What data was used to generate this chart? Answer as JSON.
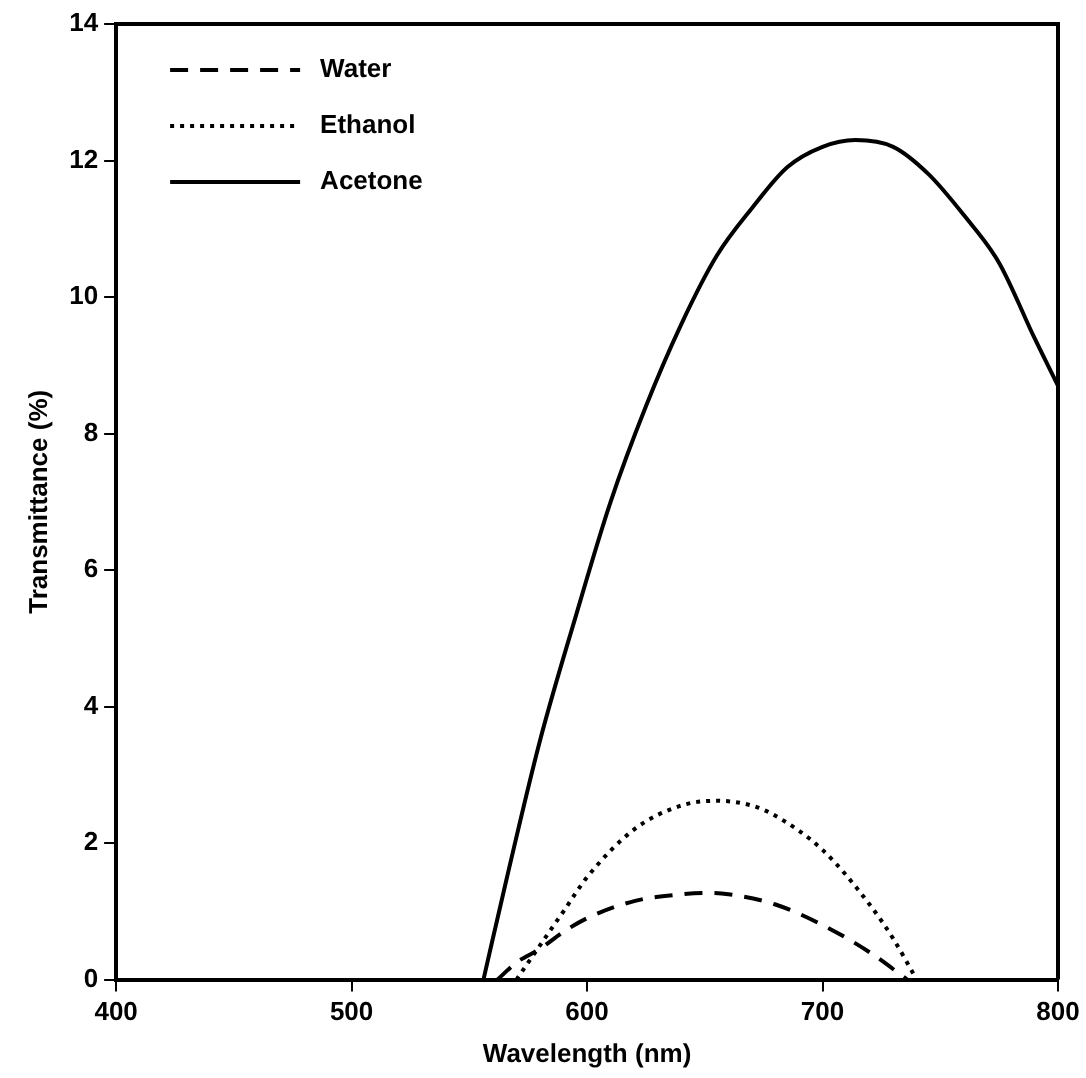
{
  "chart_data": {
    "type": "line",
    "xlabel": "Wavelength (nm)",
    "ylabel": "Transmittance (%)",
    "xlim": [
      400,
      800
    ],
    "xticks": [
      400,
      500,
      600,
      700,
      800
    ],
    "ylim": [
      0,
      14
    ],
    "yticks": [
      0,
      2,
      4,
      6,
      8,
      10,
      12,
      14
    ],
    "grid": false,
    "legend": "top left",
    "marker": "none",
    "series": [
      {
        "name": "Water",
        "color": "#000000",
        "line_style": "dashed",
        "x": [
          562,
          570,
          580,
          590,
          600,
          620,
          640,
          650,
          660,
          680,
          700,
          720,
          736
        ],
        "values": [
          0,
          0.25,
          0.45,
          0.7,
          0.9,
          1.15,
          1.25,
          1.27,
          1.25,
          1.1,
          0.8,
          0.4,
          0
        ]
      },
      {
        "name": "Ethanol",
        "color": "#000000",
        "line_style": "dotted",
        "x": [
          570,
          580,
          590,
          600,
          620,
          640,
          655,
          670,
          680,
          700,
          720,
          730,
          740
        ],
        "values": [
          0,
          0.5,
          1.0,
          1.5,
          2.2,
          2.55,
          2.62,
          2.55,
          2.4,
          1.9,
          1.1,
          0.6,
          0
        ]
      },
      {
        "name": "Acetone",
        "color": "#000000",
        "line_style": "solid",
        "x": [
          556,
          566,
          580,
          595,
          610,
          625,
          640,
          655,
          670,
          685,
          700,
          714,
          730,
          745,
          760,
          775,
          790,
          800
        ],
        "values": [
          0,
          1.5,
          3.5,
          5.3,
          7,
          8.4,
          9.6,
          10.6,
          11.3,
          11.9,
          12.2,
          12.3,
          12.2,
          11.8,
          11.2,
          10.5,
          9.4,
          8.7
        ]
      }
    ]
  }
}
